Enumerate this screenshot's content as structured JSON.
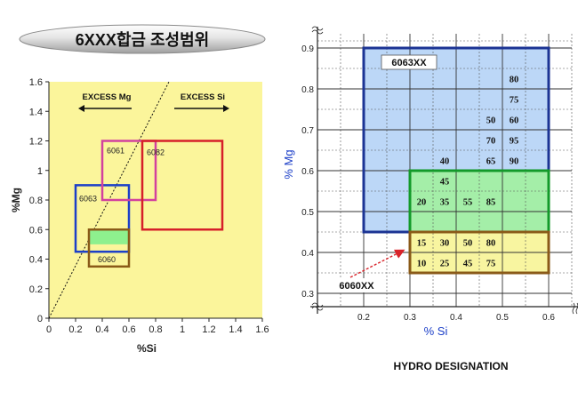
{
  "header": {
    "title": "6XXX합금 조성범위"
  },
  "chart_data": [
    {
      "type": "scatter",
      "xlabel": "%Si",
      "ylabel": "%Mg",
      "xlim": [
        0,
        1.6
      ],
      "ylim": [
        0,
        1.6
      ],
      "x_ticks": [
        "0",
        "0.2",
        "0.4",
        "0.6",
        "0.8",
        "1",
        "1.2",
        "1.4",
        "1.6"
      ],
      "y_ticks": [
        "0",
        "0.2",
        "0.4",
        "0.6",
        "0.8",
        "1",
        "1.2",
        "1.4",
        "1.6"
      ],
      "background_color": "#fbf59b",
      "annotations": [
        {
          "label": "EXCESS Mg",
          "direction": "left"
        },
        {
          "label": "EXCESS Si",
          "direction": "right"
        }
      ],
      "diagonal": {
        "points": [
          [
            0,
            0
          ],
          [
            0.9,
            1.6
          ]
        ],
        "style": "dotted"
      },
      "regions": [
        {
          "name": "6063",
          "si": [
            0.2,
            0.6
          ],
          "mg": [
            0.45,
            0.9
          ],
          "color": "#1c3fc8"
        },
        {
          "name": "6061",
          "si": [
            0.4,
            0.8
          ],
          "mg": [
            0.8,
            1.2
          ],
          "color": "#d2419e"
        },
        {
          "name": "6082",
          "si": [
            0.7,
            1.3
          ],
          "mg": [
            0.6,
            1.2
          ],
          "color": "#d61f2a"
        },
        {
          "name": "6060",
          "si": [
            0.3,
            0.6
          ],
          "mg": [
            0.35,
            0.6
          ],
          "color": "#8a5a18",
          "fill": "#8ef08e"
        }
      ]
    },
    {
      "type": "table",
      "title": "HYDRO DESIGNATION",
      "xlabel": "% Si",
      "ylabel": "% Mg",
      "xlim": [
        0.1,
        0.65
      ],
      "ylim": [
        0.3,
        0.9
      ],
      "x_ticks": [
        "0.2",
        "0.3",
        "0.4",
        "0.5",
        "0.6"
      ],
      "y_ticks": [
        "0.3",
        "0.4",
        "0.5",
        "0.6",
        "0.7",
        "0.8",
        "0.9"
      ],
      "regions": [
        {
          "name": "6063XX",
          "si": [
            0.2,
            0.6
          ],
          "mg": [
            0.45,
            0.9
          ],
          "color": "#1c3494",
          "fill": "#bcd7f7"
        },
        {
          "name": "",
          "si": [
            0.3,
            0.6
          ],
          "mg": [
            0.45,
            0.6
          ],
          "color": "#139a2a",
          "fill": "#a4eea8"
        },
        {
          "name": "6060XX",
          "si": [
            0.3,
            0.6
          ],
          "mg": [
            0.35,
            0.45
          ],
          "color": "#8a5a18",
          "fill": "#f8f5a0"
        }
      ],
      "cells": [
        {
          "label": "80",
          "si": 0.525,
          "mg": 0.825
        },
        {
          "label": "75",
          "si": 0.525,
          "mg": 0.775
        },
        {
          "label": "50",
          "si": 0.475,
          "mg": 0.725
        },
        {
          "label": "60",
          "si": 0.525,
          "mg": 0.725
        },
        {
          "label": "70",
          "si": 0.475,
          "mg": 0.675
        },
        {
          "label": "95",
          "si": 0.525,
          "mg": 0.675
        },
        {
          "label": "40",
          "si": 0.375,
          "mg": 0.625
        },
        {
          "label": "65",
          "si": 0.475,
          "mg": 0.625
        },
        {
          "label": "90",
          "si": 0.525,
          "mg": 0.625
        },
        {
          "label": "45",
          "si": 0.375,
          "mg": 0.575
        },
        {
          "label": "20",
          "si": 0.325,
          "mg": 0.525
        },
        {
          "label": "35",
          "si": 0.375,
          "mg": 0.525
        },
        {
          "label": "55",
          "si": 0.425,
          "mg": 0.525
        },
        {
          "label": "85",
          "si": 0.475,
          "mg": 0.525
        },
        {
          "label": "15",
          "si": 0.325,
          "mg": 0.425
        },
        {
          "label": "30",
          "si": 0.375,
          "mg": 0.425
        },
        {
          "label": "50",
          "si": 0.425,
          "mg": 0.425
        },
        {
          "label": "80",
          "si": 0.475,
          "mg": 0.425
        },
        {
          "label": "10",
          "si": 0.325,
          "mg": 0.375
        },
        {
          "label": "25",
          "si": 0.375,
          "mg": 0.375
        },
        {
          "label": "45",
          "si": 0.425,
          "mg": 0.375
        },
        {
          "label": "75",
          "si": 0.475,
          "mg": 0.375
        }
      ]
    }
  ]
}
